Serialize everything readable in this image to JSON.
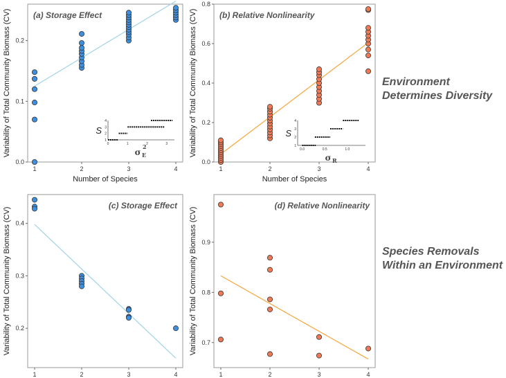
{
  "side_labels": {
    "top": [
      "Environment",
      "Determines Diversity"
    ],
    "bottom": [
      "Species Removals",
      "Within an Environment"
    ]
  },
  "colors": {
    "blue_fill": "#3d8fe0",
    "blue_line": "#9fd3e6",
    "orange_fill": "#f07a55",
    "orange_line": "#f7a53a",
    "frame": "#9a9a9a"
  },
  "chart_data": [
    {
      "type": "scatter",
      "title": "(a) Storage Effect",
      "xlabel": "Number of Species",
      "ylabel": "Variability of Total Community Biomass (CV)",
      "xlim": [
        1,
        4
      ],
      "ylim": [
        0,
        0.26
      ],
      "xticks": [
        1,
        2,
        3,
        4
      ],
      "yticks": [
        0.0,
        0.1,
        0.2
      ],
      "ytick_labels": [
        "0.0",
        "0.1",
        "0.2"
      ],
      "point_color": "#3d8fe0",
      "points": [
        {
          "x": 1,
          "y": 0.0
        },
        {
          "x": 1,
          "y": 0.07
        },
        {
          "x": 1,
          "y": 0.098
        },
        {
          "x": 1,
          "y": 0.12
        },
        {
          "x": 1,
          "y": 0.137
        },
        {
          "x": 1,
          "y": 0.148
        },
        {
          "x": 2,
          "y": 0.155
        },
        {
          "x": 2,
          "y": 0.16
        },
        {
          "x": 2,
          "y": 0.166
        },
        {
          "x": 2,
          "y": 0.172
        },
        {
          "x": 2,
          "y": 0.178
        },
        {
          "x": 2,
          "y": 0.183
        },
        {
          "x": 2,
          "y": 0.188
        },
        {
          "x": 2,
          "y": 0.196
        },
        {
          "x": 2,
          "y": 0.211
        },
        {
          "x": 3,
          "y": 0.2
        },
        {
          "x": 3,
          "y": 0.205
        },
        {
          "x": 3,
          "y": 0.21
        },
        {
          "x": 3,
          "y": 0.214
        },
        {
          "x": 3,
          "y": 0.218
        },
        {
          "x": 3,
          "y": 0.222
        },
        {
          "x": 3,
          "y": 0.226
        },
        {
          "x": 3,
          "y": 0.23
        },
        {
          "x": 3,
          "y": 0.234
        },
        {
          "x": 3,
          "y": 0.238
        },
        {
          "x": 3,
          "y": 0.242
        },
        {
          "x": 3,
          "y": 0.246
        },
        {
          "x": 4,
          "y": 0.234
        },
        {
          "x": 4,
          "y": 0.238
        },
        {
          "x": 4,
          "y": 0.242
        },
        {
          "x": 4,
          "y": 0.246
        },
        {
          "x": 4,
          "y": 0.25
        },
        {
          "x": 4,
          "y": 0.254
        }
      ],
      "fit_line": {
        "x": [
          1,
          4
        ],
        "y": [
          0.125,
          0.265
        ],
        "color": "#9fd3e6"
      },
      "inset": {
        "ylabel": "S",
        "xlabel": "σ",
        "xlabel_sub": "E",
        "xlabel_sup": "2",
        "xticks": [
          0,
          1,
          2,
          3
        ],
        "yticks": [
          1,
          2,
          3,
          4
        ],
        "xlim": [
          0,
          3.4
        ],
        "ylim": [
          1,
          4
        ],
        "steps": [
          {
            "x0": 0.0,
            "x1": 0.5,
            "y": 1
          },
          {
            "x0": 0.55,
            "x1": 1.0,
            "y": 2
          },
          {
            "x0": 1.0,
            "x1": 2.9,
            "y": 3
          },
          {
            "x0": 2.2,
            "x1": 3.3,
            "y": 4
          }
        ]
      }
    },
    {
      "type": "scatter",
      "title": "(b) Relative Nonlinearity",
      "xlabel": "Number of Species",
      "ylabel": "Variability of Total Community Biomass (CV)",
      "xlim": [
        1,
        4
      ],
      "ylim": [
        0,
        0.8
      ],
      "xticks": [
        1,
        2,
        3,
        4
      ],
      "yticks": [
        0.0,
        0.2,
        0.4,
        0.6,
        0.8
      ],
      "ytick_labels": [
        "0.0",
        "0.2",
        "0.4",
        "0.6",
        "0.8"
      ],
      "point_color": "#f07a55",
      "points": [
        {
          "x": 1,
          "y": 0.0
        },
        {
          "x": 1,
          "y": 0.01
        },
        {
          "x": 1,
          "y": 0.02
        },
        {
          "x": 1,
          "y": 0.03
        },
        {
          "x": 1,
          "y": 0.04
        },
        {
          "x": 1,
          "y": 0.05
        },
        {
          "x": 1,
          "y": 0.06
        },
        {
          "x": 1,
          "y": 0.07
        },
        {
          "x": 1,
          "y": 0.08
        },
        {
          "x": 1,
          "y": 0.09
        },
        {
          "x": 1,
          "y": 0.1
        },
        {
          "x": 1,
          "y": 0.11
        },
        {
          "x": 2,
          "y": 0.12
        },
        {
          "x": 2,
          "y": 0.135
        },
        {
          "x": 2,
          "y": 0.15
        },
        {
          "x": 2,
          "y": 0.165
        },
        {
          "x": 2,
          "y": 0.18
        },
        {
          "x": 2,
          "y": 0.195
        },
        {
          "x": 2,
          "y": 0.21
        },
        {
          "x": 2,
          "y": 0.225
        },
        {
          "x": 2,
          "y": 0.24
        },
        {
          "x": 2,
          "y": 0.255
        },
        {
          "x": 2,
          "y": 0.27
        },
        {
          "x": 2,
          "y": 0.28
        },
        {
          "x": 3,
          "y": 0.3
        },
        {
          "x": 3,
          "y": 0.32
        },
        {
          "x": 3,
          "y": 0.34
        },
        {
          "x": 3,
          "y": 0.36
        },
        {
          "x": 3,
          "y": 0.38
        },
        {
          "x": 3,
          "y": 0.4
        },
        {
          "x": 3,
          "y": 0.42
        },
        {
          "x": 3,
          "y": 0.44
        },
        {
          "x": 3,
          "y": 0.455
        },
        {
          "x": 3,
          "y": 0.47
        },
        {
          "x": 4,
          "y": 0.46
        },
        {
          "x": 4,
          "y": 0.54
        },
        {
          "x": 4,
          "y": 0.57
        },
        {
          "x": 4,
          "y": 0.6
        },
        {
          "x": 4,
          "y": 0.62
        },
        {
          "x": 4,
          "y": 0.64
        },
        {
          "x": 4,
          "y": 0.66
        },
        {
          "x": 4,
          "y": 0.68
        },
        {
          "x": 4,
          "y": 0.77
        },
        {
          "x": 4,
          "y": 0.775
        }
      ],
      "fit_line": {
        "x": [
          1,
          4
        ],
        "y": [
          0.04,
          0.605
        ],
        "color": "#f7a53a"
      },
      "inset": {
        "ylabel": "S",
        "xlabel": "σ",
        "xlabel_sub": "R",
        "xlabel_sup": "",
        "xticks": [
          0.0,
          0.5,
          1.0
        ],
        "yticks": [
          1,
          2,
          3,
          4
        ],
        "xticklabels": [
          "0.0",
          "0.5",
          "1.0"
        ],
        "xlim": [
          -0.1,
          1.4
        ],
        "ylim": [
          1,
          4
        ],
        "steps": [
          {
            "x0": 0.0,
            "x1": 0.3,
            "y": 1
          },
          {
            "x0": 0.28,
            "x1": 0.62,
            "y": 2
          },
          {
            "x0": 0.62,
            "x1": 0.9,
            "y": 3
          },
          {
            "x0": 0.9,
            "x1": 1.25,
            "y": 4
          }
        ]
      }
    },
    {
      "type": "scatter",
      "title": "(c) Storage Effect",
      "xlabel": "Number of Species",
      "ylabel": "Variability of Total Community Biomass (CV)",
      "xlim": [
        1,
        4
      ],
      "ylim": [
        0.125,
        0.455
      ],
      "xticks": [
        1,
        2,
        3,
        4
      ],
      "yticks": [
        0.2,
        0.3,
        0.4
      ],
      "ytick_labels": [
        "0.2",
        "0.3",
        "0.4"
      ],
      "point_color": "#3d8fe0",
      "points": [
        {
          "x": 1,
          "y": 0.445
        },
        {
          "x": 1,
          "y": 0.432
        },
        {
          "x": 1,
          "y": 0.428
        },
        {
          "x": 2,
          "y": 0.3
        },
        {
          "x": 2,
          "y": 0.295
        },
        {
          "x": 2,
          "y": 0.29
        },
        {
          "x": 2,
          "y": 0.285
        },
        {
          "x": 2,
          "y": 0.28
        },
        {
          "x": 3,
          "y": 0.237
        },
        {
          "x": 3,
          "y": 0.235
        },
        {
          "x": 3,
          "y": 0.222
        },
        {
          "x": 3,
          "y": 0.22
        },
        {
          "x": 4,
          "y": 0.2
        }
      ],
      "fit_line": {
        "x": [
          1,
          4
        ],
        "y": [
          0.398,
          0.143
        ],
        "color": "#9fd3e6"
      }
    },
    {
      "type": "scatter",
      "title": "(d) Relative Nonlinearity",
      "xlabel": "Number of Species",
      "ylabel": "Variability of Total Community Biomass (CV)",
      "xlim": [
        1,
        4
      ],
      "ylim": [
        0.65,
        0.995
      ],
      "xticks": [
        1,
        2,
        3,
        4
      ],
      "yticks": [
        0.7,
        0.8,
        0.9
      ],
      "ytick_labels": [
        "0.7",
        "0.8",
        "0.9"
      ],
      "point_color": "#f07a55",
      "points": [
        {
          "x": 1,
          "y": 0.975
        },
        {
          "x": 1,
          "y": 0.798
        },
        {
          "x": 1,
          "y": 0.706
        },
        {
          "x": 2,
          "y": 0.869
        },
        {
          "x": 2,
          "y": 0.845
        },
        {
          "x": 2,
          "y": 0.786
        },
        {
          "x": 2,
          "y": 0.766
        },
        {
          "x": 2,
          "y": 0.677
        },
        {
          "x": 3,
          "y": 0.711
        },
        {
          "x": 3,
          "y": 0.674
        },
        {
          "x": 4,
          "y": 0.688
        }
      ],
      "fit_line": {
        "x": [
          1,
          4
        ],
        "y": [
          0.833,
          0.667
        ],
        "color": "#f7a53a"
      }
    }
  ]
}
